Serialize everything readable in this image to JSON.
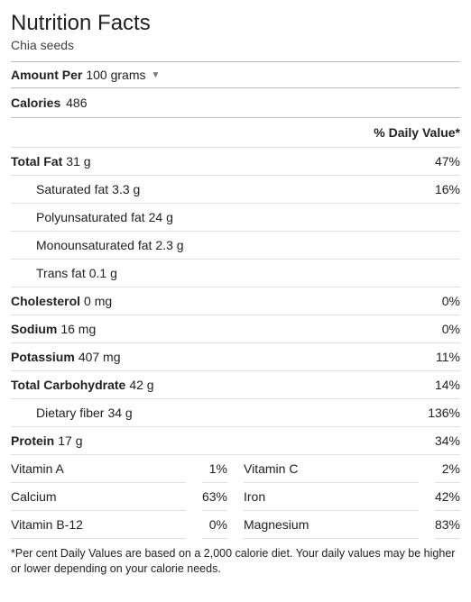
{
  "header": {
    "title": "Nutrition Facts",
    "food_name": "Chia seeds"
  },
  "amount_per": {
    "label": "Amount Per",
    "unit": "100 grams"
  },
  "calories": {
    "label": "Calories",
    "value": "486"
  },
  "dv_header": "% Daily Value*",
  "nutrients": [
    {
      "name": "Total Fat",
      "amount": "31 g",
      "dv": "47%",
      "sub": false
    },
    {
      "name": "Saturated fat",
      "amount": "3.3 g",
      "dv": "16%",
      "sub": true
    },
    {
      "name": "Polyunsaturated fat",
      "amount": "24 g",
      "dv": "",
      "sub": true
    },
    {
      "name": "Monounsaturated fat",
      "amount": "2.3 g",
      "dv": "",
      "sub": true
    },
    {
      "name": "Trans fat",
      "amount": "0.1 g",
      "dv": "",
      "sub": true
    },
    {
      "name": "Cholesterol",
      "amount": "0 mg",
      "dv": "0%",
      "sub": false
    },
    {
      "name": "Sodium",
      "amount": "16 mg",
      "dv": "0%",
      "sub": false
    },
    {
      "name": "Potassium",
      "amount": "407 mg",
      "dv": "11%",
      "sub": false
    },
    {
      "name": "Total Carbohydrate",
      "amount": "42 g",
      "dv": "14%",
      "sub": false
    },
    {
      "name": "Dietary fiber",
      "amount": "34 g",
      "dv": "136%",
      "sub": true
    },
    {
      "name": "Protein",
      "amount": "17 g",
      "dv": "34%",
      "sub": false
    }
  ],
  "vitamins": [
    {
      "left_name": "Vitamin A",
      "left_val": "1%",
      "right_name": "Vitamin C",
      "right_val": "2%"
    },
    {
      "left_name": "Calcium",
      "left_val": "63%",
      "right_name": "Iron",
      "right_val": "42%"
    },
    {
      "left_name": "Vitamin B-12",
      "left_val": "0%",
      "right_name": "Magnesium",
      "right_val": "83%"
    }
  ],
  "footnote": "*Per cent Daily Values are based on a 2,000 calorie diet. Your daily values may be higher or lower depending on your calorie needs."
}
